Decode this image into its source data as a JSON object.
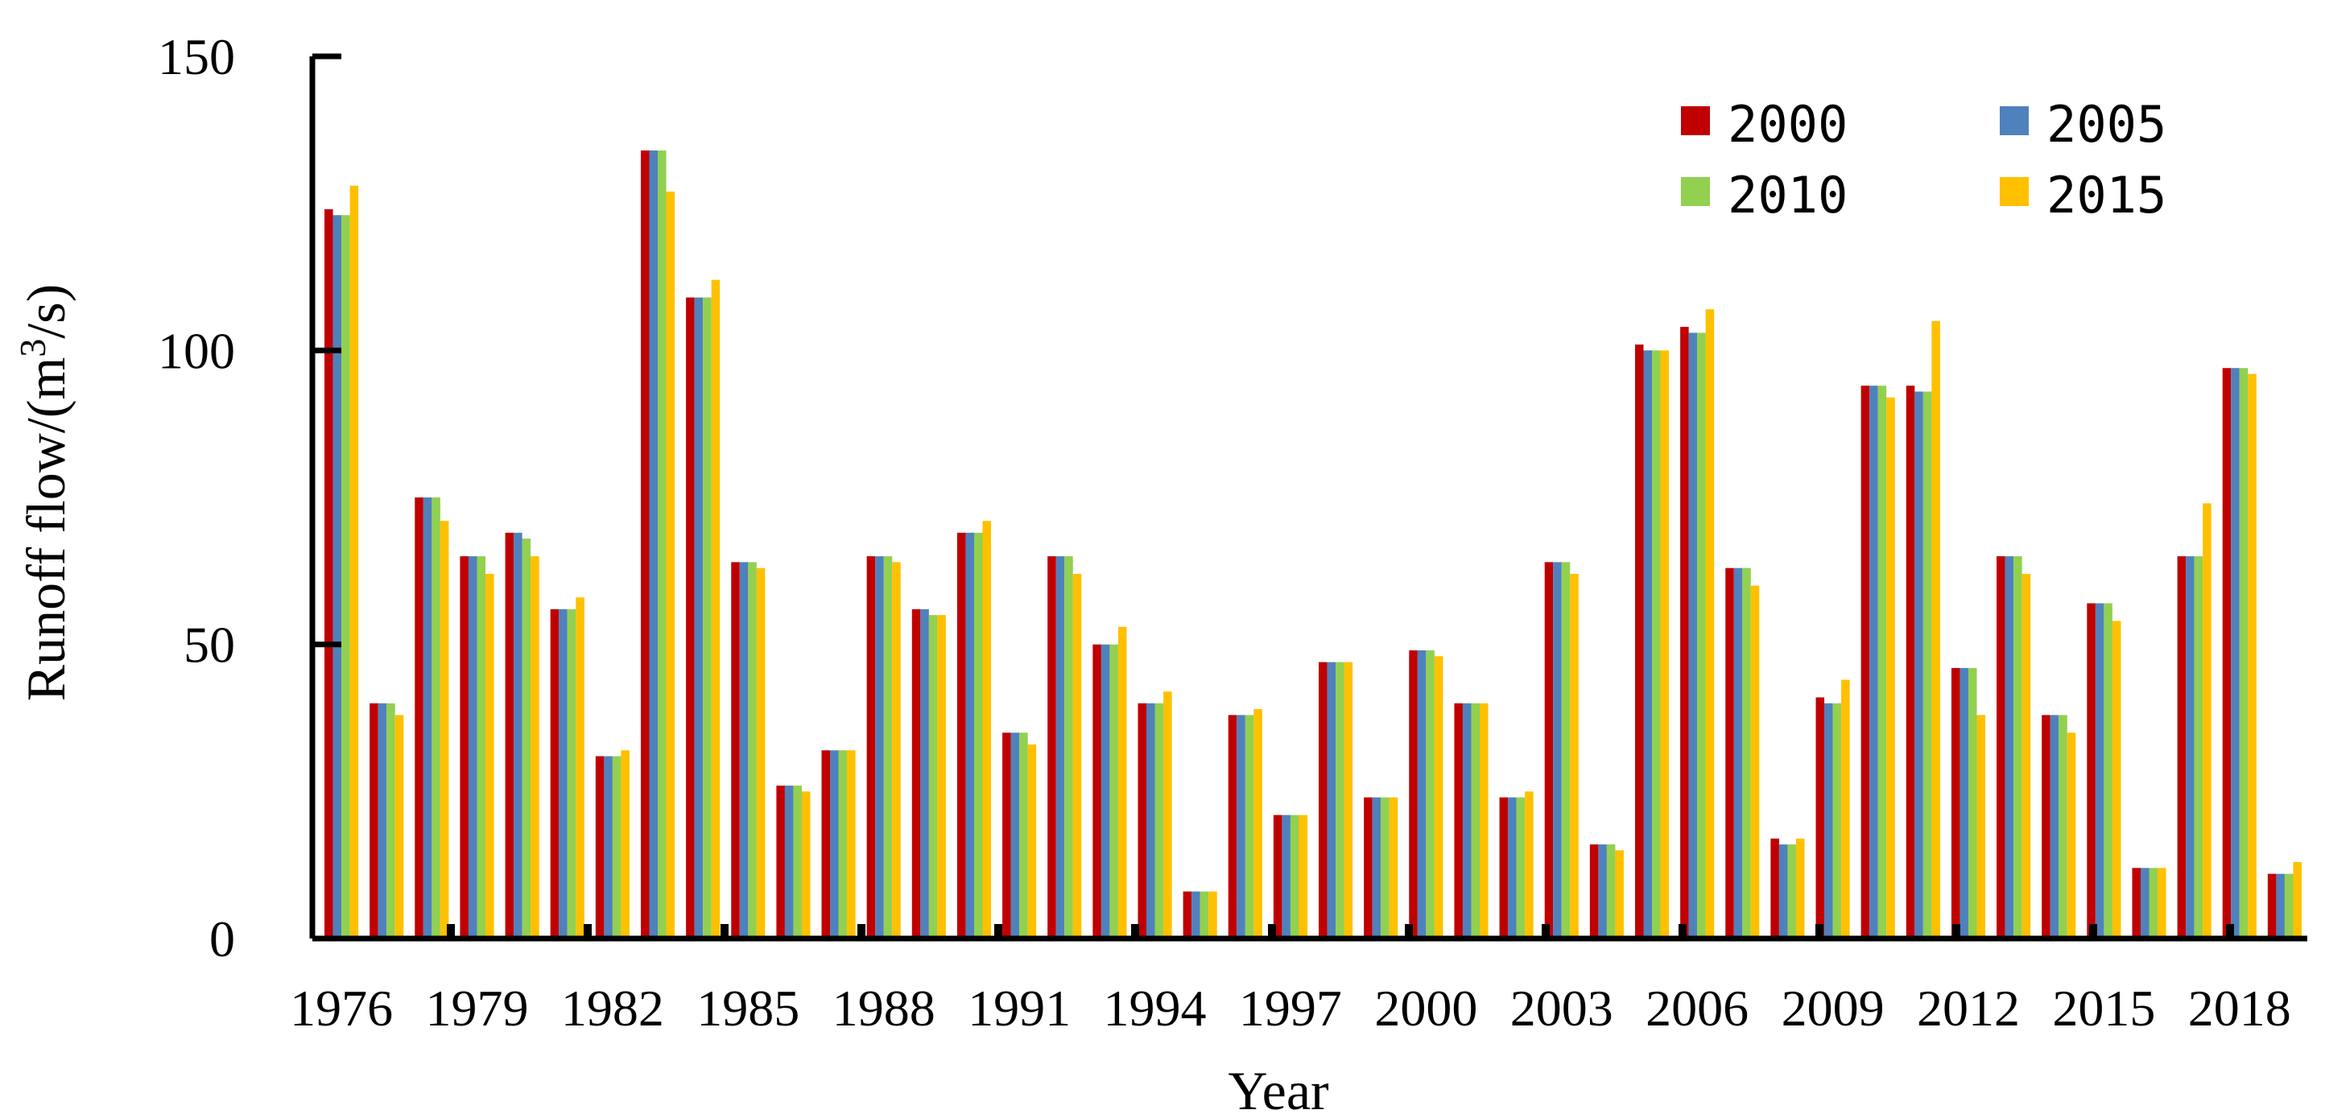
{
  "chart_data": {
    "type": "bar",
    "title": "",
    "xlabel": "Year",
    "ylabel": "Runoff flow/(m",
    "ylabel_sup": "3",
    "ylabel_tail": "/s)",
    "ylim": [
      0,
      150
    ],
    "yticks": [
      "0",
      "50",
      "100",
      "150"
    ],
    "ytick_values": [
      0,
      50,
      100,
      150
    ],
    "x_tick_labels": [
      "1976",
      "1979",
      "1982",
      "1985",
      "1988",
      "1991",
      "1994",
      "1997",
      "2000",
      "2003",
      "2006",
      "2009",
      "2012",
      "2015",
      "2018"
    ],
    "categories": [
      "1976",
      "1977",
      "1978",
      "1979",
      "1980",
      "1981",
      "1982",
      "1983",
      "1984",
      "1985",
      "1986",
      "1987",
      "1988",
      "1989",
      "1990",
      "1991",
      "1992",
      "1993",
      "1994",
      "1995",
      "1996",
      "1997",
      "1998",
      "1999",
      "2000",
      "2001",
      "2002",
      "2003",
      "2004",
      "2005",
      "2006",
      "2007",
      "2008",
      "2009",
      "2010",
      "2011",
      "2012",
      "2013",
      "2014",
      "2015",
      "2016",
      "2017",
      "2018",
      "2019"
    ],
    "legend_position": "top-right",
    "grid": false,
    "series": [
      {
        "name": "2000",
        "color": "#C00000",
        "values": [
          124,
          40,
          75,
          65,
          69,
          56,
          31,
          134,
          109,
          64,
          26,
          32,
          65,
          56,
          69,
          35,
          65,
          50,
          40,
          8,
          38,
          21,
          47,
          24,
          49,
          40,
          24,
          64,
          16,
          101,
          104,
          63,
          17,
          41,
          94,
          94,
          46,
          65,
          38,
          57,
          12,
          65,
          97,
          11
        ]
      },
      {
        "name": "2005",
        "color": "#4F81BD",
        "values": [
          123,
          40,
          75,
          65,
          69,
          56,
          31,
          134,
          109,
          64,
          26,
          32,
          65,
          56,
          69,
          35,
          65,
          50,
          40,
          8,
          38,
          21,
          47,
          24,
          49,
          40,
          24,
          64,
          16,
          100,
          103,
          63,
          16,
          40,
          94,
          93,
          46,
          65,
          38,
          57,
          12,
          65,
          97,
          11
        ]
      },
      {
        "name": "2010",
        "color": "#92D050",
        "values": [
          123,
          40,
          75,
          65,
          68,
          56,
          31,
          134,
          109,
          64,
          26,
          32,
          65,
          55,
          69,
          35,
          65,
          50,
          40,
          8,
          38,
          21,
          47,
          24,
          49,
          40,
          24,
          64,
          16,
          100,
          103,
          63,
          16,
          40,
          94,
          93,
          46,
          65,
          38,
          57,
          12,
          65,
          97,
          11
        ]
      },
      {
        "name": "2015",
        "color": "#FFC000",
        "values": [
          128,
          38,
          71,
          62,
          65,
          58,
          32,
          127,
          112,
          63,
          25,
          32,
          64,
          55,
          71,
          33,
          62,
          53,
          42,
          8,
          39,
          21,
          47,
          24,
          48,
          40,
          25,
          62,
          15,
          100,
          107,
          60,
          17,
          44,
          92,
          105,
          38,
          62,
          35,
          54,
          12,
          74,
          96,
          13
        ]
      }
    ]
  }
}
